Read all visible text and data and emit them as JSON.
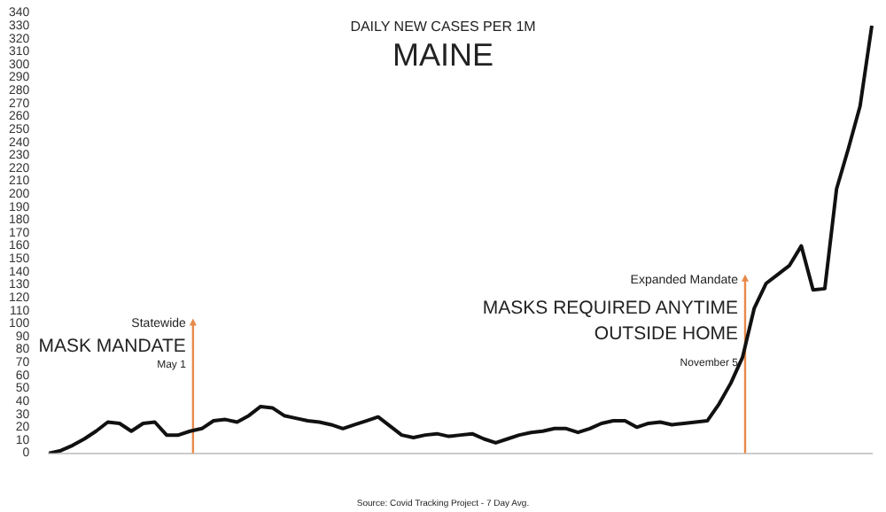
{
  "chart_data": {
    "type": "line",
    "title": "MAINE",
    "subtitle": "DAILY NEW CASES PER 1M",
    "categories": [
      null,
      null,
      null,
      null,
      null,
      null,
      null,
      null,
      null,
      null,
      null,
      null,
      null,
      null,
      null,
      null,
      null,
      null,
      null,
      null,
      null,
      null,
      null,
      null,
      null,
      null,
      null,
      null,
      null,
      null,
      null,
      null,
      null,
      null,
      null,
      null,
      null,
      null,
      null,
      null,
      null,
      null,
      null,
      null,
      null,
      null,
      null,
      null,
      null,
      null,
      null,
      null,
      null,
      null,
      null,
      null,
      null,
      null,
      null,
      null,
      null,
      null,
      null,
      null,
      null,
      null,
      null,
      null,
      null,
      null,
      null
    ],
    "series": [
      {
        "color": "#111111",
        "values": [
          0,
          2,
          6,
          11,
          17,
          24,
          23,
          17,
          23,
          24,
          14,
          14,
          17,
          19,
          25,
          26,
          24,
          29,
          36,
          35,
          29,
          27,
          25,
          24,
          22,
          19,
          22,
          25,
          28,
          21,
          14,
          12,
          14,
          15,
          13,
          14,
          15,
          11,
          8,
          11,
          14,
          16,
          17,
          19,
          19,
          16,
          19,
          23,
          25,
          25,
          20,
          23,
          24,
          22,
          23,
          24,
          25,
          38,
          54,
          74,
          112,
          131,
          138,
          145,
          160,
          126,
          127,
          204,
          235,
          268,
          330
        ]
      }
    ],
    "ylim": [
      0,
      340
    ],
    "yticks": [
      0,
      10,
      20,
      30,
      40,
      50,
      60,
      70,
      80,
      90,
      100,
      110,
      120,
      130,
      140,
      150,
      160,
      170,
      180,
      190,
      200,
      210,
      220,
      230,
      240,
      250,
      260,
      270,
      280,
      290,
      300,
      310,
      320,
      330,
      340
    ],
    "marker": "none",
    "line_style": "solid",
    "annotations": [
      "Statewide",
      "MASK MANDATE",
      "May 1",
      "Expanded Mandate",
      "MASKS REQUIRED ANYTIME",
      "OUTSIDE HOME",
      "November 5",
      "Source: Covid Tracking Project - 7 Day Avg."
    ]
  }
}
